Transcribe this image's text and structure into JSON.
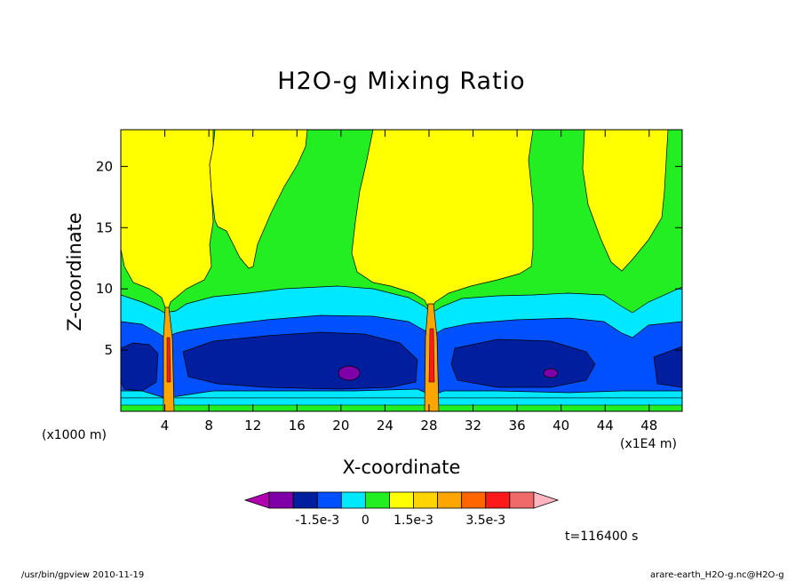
{
  "chart_data": {
    "type": "heatmap",
    "title": "H2O-g Mixing Ratio",
    "xlabel": "X-coordinate",
    "ylabel": "Z-coordinate",
    "x_unit": "(x1E4 m)",
    "y_unit": "(x1000 m)",
    "x_ticks": [
      "4",
      "8",
      "12",
      "16",
      "20",
      "24",
      "28",
      "32",
      "36",
      "40",
      "44",
      "48"
    ],
    "y_ticks": [
      "5",
      "10",
      "15",
      "20"
    ],
    "xlim": [
      0,
      51
    ],
    "ylim": [
      0,
      23
    ],
    "colorbar": {
      "colors": [
        "#b000b0",
        "#7f00a8",
        "#001e9e",
        "#0050ff",
        "#00e8ff",
        "#22ee22",
        "#ffff00",
        "#ffd400",
        "#ffa500",
        "#ff6600",
        "#ff1a1a",
        "#f06a6a",
        "#ffb6c1"
      ],
      "labels": [
        {
          "text": "-1.5e-3",
          "index": 3
        },
        {
          "text": "0",
          "index": 5
        },
        {
          "text": "1.5e-3",
          "index": 7
        },
        {
          "text": "3.5e-3",
          "index": 10
        }
      ]
    },
    "time_label": "t=116400 s"
  },
  "footer": {
    "left": "/usr/bin/gpview   2010-11-19",
    "right": "arare-earth_H2O-g.nc@H2O-g"
  }
}
